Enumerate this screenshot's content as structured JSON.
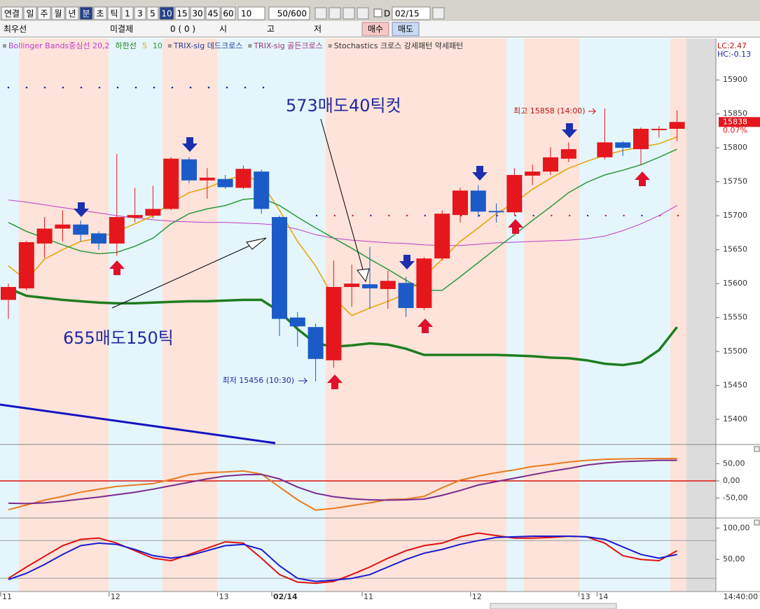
{
  "toolbar": {
    "buttons": [
      {
        "label": "연결",
        "selected": false
      },
      {
        "label": "일",
        "selected": false
      },
      {
        "label": "주",
        "selected": false
      },
      {
        "label": "월",
        "selected": false
      },
      {
        "label": "년",
        "selected": false
      },
      {
        "label": "분",
        "selected": true
      },
      {
        "label": "초",
        "selected": false
      },
      {
        "label": "틱",
        "selected": false
      },
      {
        "label": "1",
        "selected": false
      },
      {
        "label": "3",
        "selected": false
      },
      {
        "label": "5",
        "selected": false
      },
      {
        "label": "10",
        "selected": true
      },
      {
        "label": "15",
        "selected": false
      },
      {
        "label": "30",
        "selected": false
      },
      {
        "label": "45",
        "selected": false
      },
      {
        "label": "60",
        "selected": false
      }
    ],
    "count": "10",
    "range": "50/600",
    "date_check": "D",
    "date": "02/15"
  },
  "info_bar": {
    "item": "최우선",
    "open_interest": "미결제",
    "oi_value": "0 (    0 )",
    "open": "시",
    "high": "고",
    "low": "저",
    "buy": "매수",
    "sell": "매도"
  },
  "chart_data": [
    {
      "type": "candlestick",
      "categories": [
        "11",
        null,
        null,
        null,
        null,
        null,
        "12",
        null,
        null,
        null,
        null,
        null,
        "13",
        null,
        null,
        "02/14",
        null,
        null,
        null,
        null,
        "11",
        null,
        null,
        null,
        null,
        null,
        "12",
        null,
        null,
        null,
        null,
        null,
        "13",
        "14",
        null,
        null,
        null,
        null
      ],
      "open": [
        15576,
        15593,
        15659,
        15681,
        15687,
        15674,
        15659,
        15697,
        15700,
        15710,
        15783,
        15752,
        15754,
        15741,
        15765,
        15698,
        15550,
        15536,
        15487,
        15595,
        15599,
        15592,
        15601,
        15564,
        15637,
        15701,
        15737,
        15707,
        15705,
        15759,
        15765,
        15784,
        null,
        15786,
        15808,
        15798,
        15826,
        15828
      ],
      "high": [
        15600,
        15663,
        15698,
        15708,
        15693,
        15677,
        15791,
        15741,
        15744,
        15786,
        15786,
        15770,
        15760,
        15774,
        15768,
        15700,
        15558,
        15541,
        15634,
        15628,
        15654,
        15619,
        15610,
        15639,
        15708,
        15741,
        15745,
        15718,
        15770,
        15775,
        15801,
        15808,
        null,
        15858,
        15810,
        15830,
        15832,
        15855
      ],
      "low": [
        15548,
        15590,
        15638,
        15662,
        15662,
        15650,
        15641,
        15690,
        15696,
        15708,
        15748,
        15725,
        15740,
        15739,
        15703,
        15523,
        15507,
        15456,
        15476,
        15566,
        15563,
        15563,
        15551,
        15561,
        15634,
        15690,
        15698,
        15690,
        15700,
        15745,
        15760,
        15779,
        null,
        15783,
        15788,
        15775,
        15815,
        15810
      ],
      "close": [
        15595,
        15661,
        15681,
        15687,
        15672,
        15659,
        15698,
        15701,
        15710,
        15784,
        15752,
        15756,
        15742,
        15769,
        15710,
        15548,
        15537,
        15489,
        15595,
        15600,
        15593,
        15604,
        15564,
        15637,
        15703,
        15737,
        15706,
        15705,
        15760,
        15765,
        15786,
        15798,
        null,
        15808,
        15800,
        15828,
        15828,
        15838
      ],
      "up_color": "#e5161c",
      "down_color": "#1b5bc8",
      "series": [
        {
          "name": "Bollinger Bands중심선 20,2",
          "color": "#c03cc8",
          "width": 1,
          "values": [
            15723,
            15720,
            15716,
            15712,
            15708,
            15704,
            15700,
            15697,
            15694,
            15692,
            15691,
            15690,
            15690,
            15689,
            15688,
            15686,
            15680,
            15672,
            15667,
            15664,
            15662,
            15660,
            15659,
            15657,
            15656,
            15656,
            15658,
            15660,
            15661,
            15662,
            15663,
            15664,
            15666,
            15670,
            15678,
            15688,
            15700,
            15715
          ]
        },
        {
          "name": "하한선",
          "color": "#1f7d1f",
          "width": 3.5,
          "values": [
            15593,
            15582,
            15579,
            15576,
            15574,
            15572,
            15571,
            15571,
            15572,
            15573,
            15574,
            15574,
            15575,
            15576,
            15576,
            15559,
            15533,
            15512,
            15507,
            15509,
            15512,
            15510,
            15504,
            15495,
            15495,
            15495,
            15495,
            15495,
            15494,
            15493,
            15491,
            15490,
            15487,
            15482,
            15480,
            15484,
            15502,
            15536
          ]
        },
        {
          "name": "5",
          "color": "#e8a300",
          "width": 1.5,
          "values": [
            15626,
            15605,
            15636,
            15650,
            15662,
            15667,
            15677,
            15688,
            15700,
            15719,
            15734,
            15741,
            15752,
            15760,
            15749,
            15708,
            15662,
            15626,
            15579,
            15553,
            15564,
            15574,
            15585,
            15610,
            15636,
            15662,
            15682,
            15703,
            15719,
            15739,
            15755,
            15770,
            15780,
            15789,
            15796,
            15801,
            15806,
            15816
          ]
        },
        {
          "name": "10",
          "color": "#2c9a3c",
          "width": 1.5,
          "values": [
            15690,
            15677,
            15667,
            15657,
            15648,
            15644,
            15646,
            15655,
            15667,
            15688,
            15703,
            15710,
            15715,
            15724,
            15726,
            15715,
            15698,
            15682,
            15667,
            15652,
            15636,
            15621,
            15605,
            15590,
            15590,
            15610,
            15631,
            15652,
            15672,
            15693,
            15713,
            15734,
            15749,
            15760,
            15767,
            15775,
            15786,
            15798
          ]
        }
      ],
      "legend_extra": [
        {
          "text": "TRIX-sig 데드크로스",
          "color": "#1b3c9c"
        },
        {
          "text": "TRIX-sig 골든크로스",
          "color": "#a0307c"
        },
        {
          "text": "Stochastics 크로스 강세패턴  약세패턴",
          "color": "#333333"
        }
      ],
      "ylim": [
        15363,
        15961
      ],
      "yticks": [
        15400,
        15450,
        15500,
        15550,
        15600,
        15650,
        15700,
        15750,
        15800,
        15850,
        15900
      ],
      "annotations": [
        {
          "text": "573매도40틱컷"
        },
        {
          "text": "655매도150틱"
        },
        {
          "text": "최고 15858 (14:00)"
        },
        {
          "text": "최저 15456 (10:30)"
        }
      ],
      "last_price_label": "15838",
      "change_label": "0.07%",
      "lc_label": "LC:2.47",
      "hc_label": "HC:-0.13",
      "x_end_label": "14:40:00"
    },
    {
      "type": "line",
      "ylim": [
        -108,
        106
      ],
      "yticks": [
        {
          "value": 50,
          "label": "50,00"
        },
        {
          "value": 0,
          "label": "0,00"
        },
        {
          "value": -50,
          "label": "-50,00"
        }
      ],
      "zero_line_color": "#dd1111",
      "series": [
        {
          "color": "#ea7a1e",
          "values": [
            -84,
            -70,
            -56,
            -45,
            -33,
            -24,
            -16,
            -12,
            -8,
            4,
            18,
            24,
            26,
            29,
            20,
            -18,
            -55,
            -85,
            -80,
            -72,
            -64,
            -54,
            -53,
            -45,
            -20,
            2,
            14,
            24,
            32,
            42,
            48,
            55,
            60,
            63,
            64,
            65,
            65,
            65
          ]
        },
        {
          "color": "#7a2a8c",
          "values": [
            -65,
            -66,
            -64,
            -59,
            -53,
            -47,
            -40,
            -33,
            -24,
            -14,
            -4,
            6,
            14,
            18,
            19,
            6,
            -18,
            -36,
            -46,
            -52,
            -55,
            -56,
            -55,
            -53,
            -42,
            -28,
            -12,
            -2,
            8,
            18,
            28,
            36,
            46,
            52,
            56,
            58,
            60,
            60
          ]
        }
      ]
    },
    {
      "type": "line",
      "ylim": [
        -1,
        116
      ],
      "yticks": [
        {
          "value": 100,
          "label": "100,00"
        },
        {
          "value": 50,
          "label": "50,00"
        }
      ],
      "ref_lines": [
        80,
        20
      ],
      "series": [
        {
          "color": "#e01010",
          "values": [
            20,
            38,
            55,
            72,
            82,
            84,
            76,
            64,
            52,
            48,
            58,
            68,
            78,
            76,
            52,
            26,
            14,
            12,
            15,
            26,
            38,
            52,
            64,
            72,
            76,
            86,
            92,
            88,
            84,
            84,
            85,
            87,
            86,
            76,
            56,
            50,
            48,
            64
          ]
        },
        {
          "color": "#1a1ad0",
          "values": [
            18,
            28,
            42,
            58,
            72,
            76,
            74,
            66,
            56,
            52,
            56,
            64,
            72,
            74,
            66,
            40,
            20,
            15,
            17,
            20,
            26,
            38,
            50,
            60,
            66,
            74,
            80,
            85,
            86,
            87,
            87,
            87,
            86,
            82,
            70,
            58,
            52,
            58
          ]
        }
      ]
    }
  ]
}
